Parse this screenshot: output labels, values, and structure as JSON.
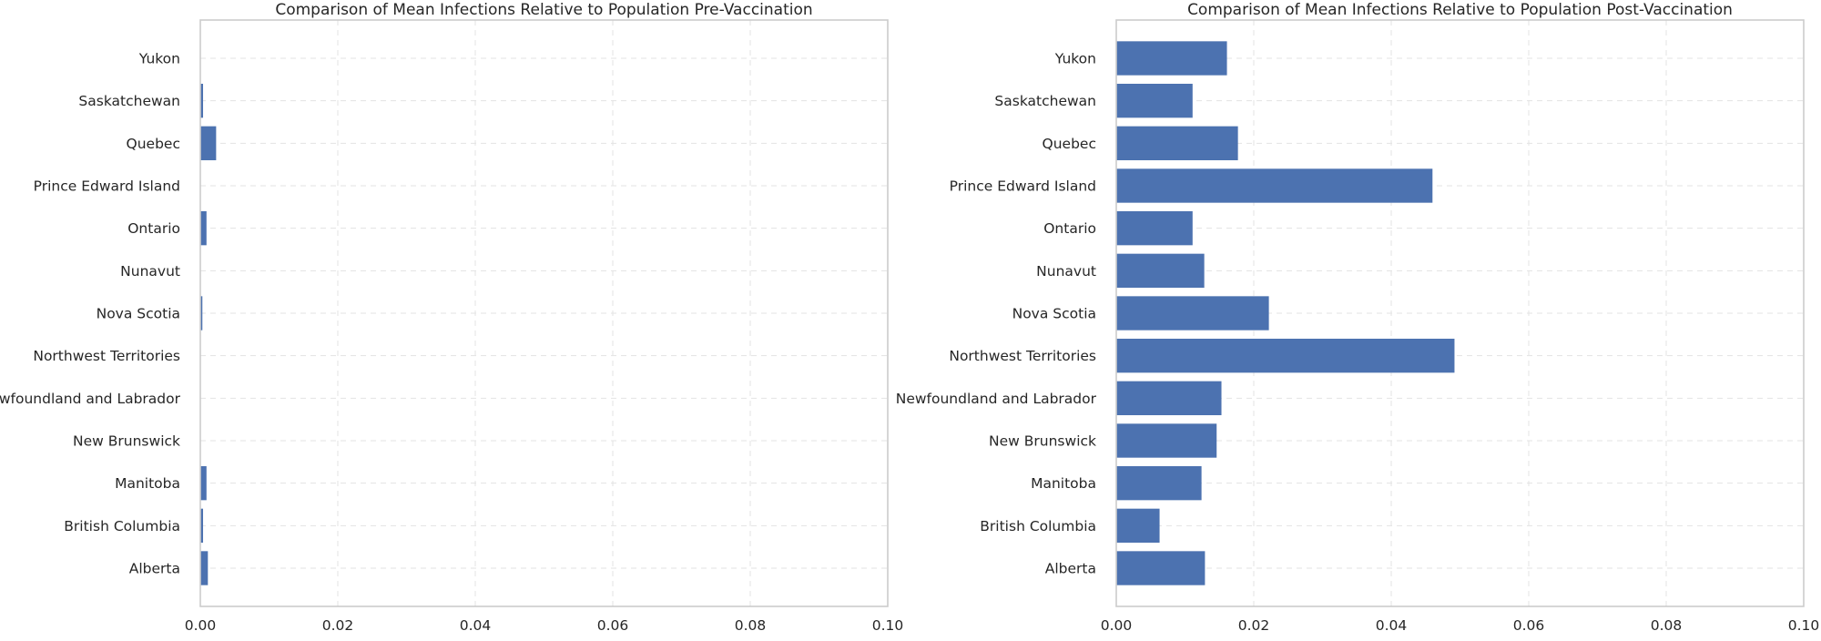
{
  "chart_data": [
    {
      "type": "bar",
      "orientation": "horizontal",
      "title": "Comparison of Mean Infections Relative to Population Pre-Vaccination",
      "xlabel": "",
      "ylabel": "",
      "xlim": [
        0,
        0.1
      ],
      "xticks": [
        "0.00",
        "0.02",
        "0.04",
        "0.06",
        "0.08",
        "0.10"
      ],
      "grid": true,
      "color": "#4c72b0",
      "categories": [
        "Alberta",
        "British Columbia",
        "Manitoba",
        "New Brunswick",
        "Newfoundland and Labrador",
        "Northwest Territories",
        "Nova Scotia",
        "Nunavut",
        "Ontario",
        "Prince Edward Island",
        "Quebec",
        "Saskatchewan",
        "Yukon"
      ],
      "values": [
        0.0011,
        0.0004,
        0.0009,
        5e-05,
        5e-05,
        5e-05,
        0.0003,
        0.0,
        0.0009,
        5e-05,
        0.0023,
        0.0004,
        5e-05
      ]
    },
    {
      "type": "bar",
      "orientation": "horizontal",
      "title": "Comparison of Mean Infections Relative to Population Post-Vaccination",
      "xlabel": "",
      "ylabel": "",
      "xlim": [
        0,
        0.1
      ],
      "xticks": [
        "0.00",
        "0.02",
        "0.04",
        "0.06",
        "0.08",
        "0.10"
      ],
      "grid": true,
      "color": "#4c72b0",
      "categories": [
        "Alberta",
        "British Columbia",
        "Manitoba",
        "New Brunswick",
        "Newfoundland and Labrador",
        "Northwest Territories",
        "Nova Scotia",
        "Nunavut",
        "Ontario",
        "Prince Edward Island",
        "Quebec",
        "Saskatchewan",
        "Yukon"
      ],
      "values": [
        0.0129,
        0.0063,
        0.0124,
        0.0146,
        0.0153,
        0.0492,
        0.0222,
        0.0128,
        0.0111,
        0.046,
        0.0177,
        0.0111,
        0.0161
      ]
    }
  ]
}
